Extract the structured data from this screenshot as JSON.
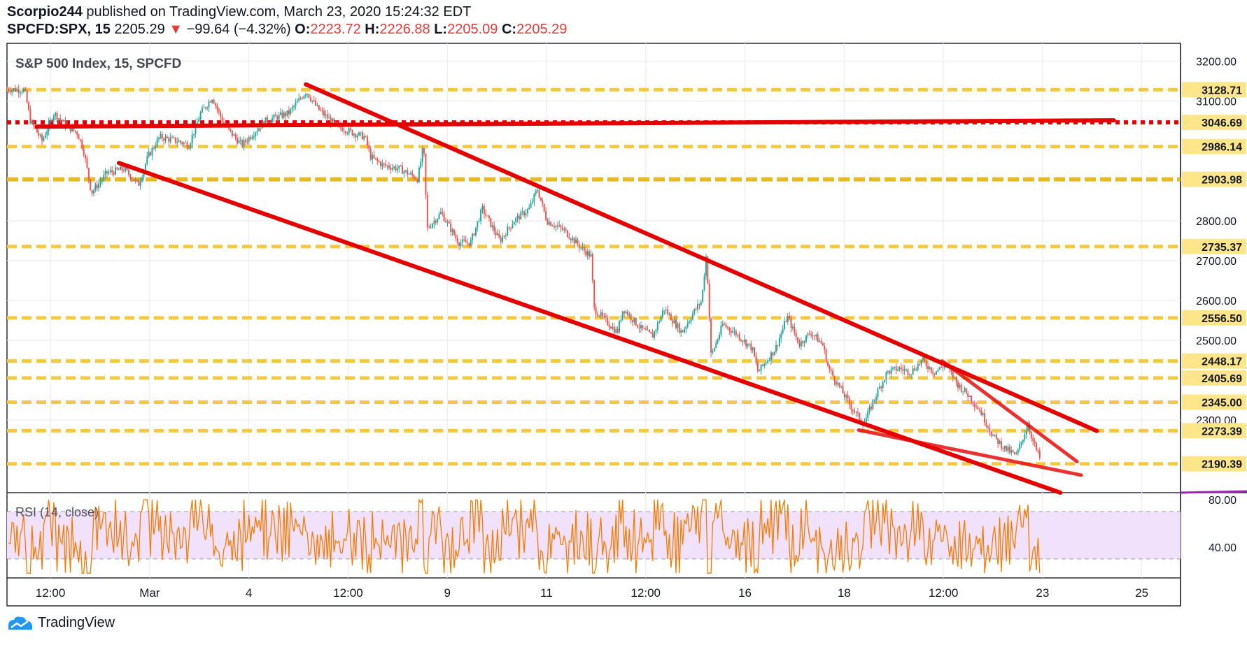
{
  "header": {
    "author": "Scorpio244",
    "published": "published on TradingView.com, March 23, 2020 15:24:32 EDT",
    "symbol": "SPCFD:SPX, 15",
    "last": "2205.29",
    "arrow": "▼",
    "change": "−99.64 (−4.32%)",
    "o_label": "O:",
    "o_value": "2223.72",
    "h_label": "H:",
    "h_value": "2226.88",
    "l_label": "L:",
    "l_value": "2205.09",
    "c_label": "C:",
    "c_value": "2205.29"
  },
  "footer": {
    "brand": "TradingView"
  },
  "colors": {
    "up": "#26a69a",
    "down": "#ef5350",
    "trend": "#e50000",
    "support": "#f5c842",
    "support_strong": "#e8b923",
    "rsi_line": "#f57c00",
    "rsi_band": "#f2e1fa",
    "grid": "#e6e9ee",
    "axis_text": "#131722",
    "price_label_bg": "#fde68a"
  },
  "chart_data": [
    {
      "type": "candlestick",
      "title": "S&P 500 Index, 15, SPCFD",
      "ylim": [
        2118,
        3245
      ],
      "y_ticks": [
        3200,
        3100,
        2800,
        2700,
        2600,
        2500,
        2300
      ],
      "y_tick_labels": [
        "3200.00",
        "3100.00",
        "2800.00",
        "2700.00",
        "2600.00",
        "2500.00",
        "2300.00"
      ],
      "x_tick_labels": [
        "12:00",
        "Mar",
        "4",
        "12:00",
        "9",
        "11",
        "12:00",
        "16",
        "18",
        "12:00",
        "23",
        "25"
      ],
      "horizontal_levels": [
        {
          "value": 3128.71,
          "label": "3128.71",
          "style": "dashed"
        },
        {
          "value": 3046.69,
          "label": "3046.69",
          "style": "red-dotted"
        },
        {
          "value": 2986.14,
          "label": "2986.14",
          "style": "dashed"
        },
        {
          "value": 2903.98,
          "label": "2903.98",
          "style": "dashed-strong"
        },
        {
          "value": 2735.37,
          "label": "2735.37",
          "style": "dashed"
        },
        {
          "value": 2556.5,
          "label": "2556.50",
          "style": "dashed"
        },
        {
          "value": 2448.17,
          "label": "2448.17",
          "style": "dashed"
        },
        {
          "value": 2405.69,
          "label": "2405.69",
          "style": "dashed"
        },
        {
          "value": 2345.0,
          "label": "2345.00",
          "style": "dashed"
        },
        {
          "value": 2273.39,
          "label": "2273.39",
          "style": "dashed"
        },
        {
          "value": 2190.39,
          "label": "2190.39",
          "style": "dashed"
        }
      ],
      "trendlines": [
        {
          "name": "resistance",
          "points": [
            [
              0.0253,
              3036
            ],
            [
              0.9432,
              3052
            ]
          ]
        },
        {
          "name": "channel-top",
          "points": [
            [
              0.2547,
              3142
            ],
            [
              0.9286,
              2273
            ]
          ]
        },
        {
          "name": "channel-bottom",
          "points": [
            [
              0.0954,
              2945
            ],
            [
              0.8976,
              2118
            ]
          ]
        },
        {
          "name": "wedge-top",
          "points": [
            [
              0.7971,
              2448
            ],
            [
              0.9118,
              2196
            ]
          ]
        },
        {
          "name": "wedge-bottom",
          "points": [
            [
              0.7257,
              2275
            ],
            [
              0.9154,
              2162
            ]
          ]
        }
      ],
      "path": [
        [
          0.0,
          3130
        ],
        [
          0.015,
          3128
        ],
        [
          0.02,
          3050
        ],
        [
          0.03,
          3000
        ],
        [
          0.04,
          3070
        ],
        [
          0.05,
          3040
        ],
        [
          0.06,
          3020
        ],
        [
          0.065,
          2980
        ],
        [
          0.072,
          2870
        ],
        [
          0.085,
          2920
        ],
        [
          0.1,
          2930
        ],
        [
          0.112,
          2890
        ],
        [
          0.12,
          2960
        ],
        [
          0.13,
          3010
        ],
        [
          0.145,
          3000
        ],
        [
          0.155,
          2990
        ],
        [
          0.165,
          3070
        ],
        [
          0.175,
          3110
        ],
        [
          0.185,
          3040
        ],
        [
          0.2,
          2990
        ],
        [
          0.21,
          3020
        ],
        [
          0.22,
          3050
        ],
        [
          0.24,
          3070
        ],
        [
          0.255,
          3125
        ],
        [
          0.265,
          3080
        ],
        [
          0.28,
          3040
        ],
        [
          0.295,
          3020
        ],
        [
          0.305,
          3010
        ],
        [
          0.31,
          2960
        ],
        [
          0.32,
          2940
        ],
        [
          0.335,
          2930
        ],
        [
          0.35,
          2905
        ],
        [
          0.355,
          2990
        ],
        [
          0.358,
          2780
        ],
        [
          0.37,
          2820
        ],
        [
          0.385,
          2745
        ],
        [
          0.395,
          2745
        ],
        [
          0.405,
          2830
        ],
        [
          0.42,
          2750
        ],
        [
          0.432,
          2800
        ],
        [
          0.445,
          2830
        ],
        [
          0.452,
          2880
        ],
        [
          0.46,
          2800
        ],
        [
          0.475,
          2775
        ],
        [
          0.49,
          2730
        ],
        [
          0.498,
          2710
        ],
        [
          0.5,
          2580
        ],
        [
          0.52,
          2520
        ],
        [
          0.525,
          2580
        ],
        [
          0.54,
          2530
        ],
        [
          0.55,
          2510
        ],
        [
          0.56,
          2580
        ],
        [
          0.575,
          2520
        ],
        [
          0.585,
          2570
        ],
        [
          0.592,
          2600
        ],
        [
          0.596,
          2720
        ],
        [
          0.6,
          2460
        ],
        [
          0.61,
          2540
        ],
        [
          0.62,
          2520
        ],
        [
          0.635,
          2480
        ],
        [
          0.64,
          2420
        ],
        [
          0.655,
          2480
        ],
        [
          0.665,
          2560
        ],
        [
          0.675,
          2490
        ],
        [
          0.685,
          2520
        ],
        [
          0.695,
          2490
        ],
        [
          0.7,
          2430
        ],
        [
          0.71,
          2380
        ],
        [
          0.72,
          2330
        ],
        [
          0.73,
          2290
        ],
        [
          0.74,
          2360
        ],
        [
          0.75,
          2420
        ],
        [
          0.76,
          2430
        ],
        [
          0.77,
          2420
        ],
        [
          0.78,
          2450
        ],
        [
          0.79,
          2420
        ],
        [
          0.8,
          2440
        ],
        [
          0.81,
          2390
        ],
        [
          0.82,
          2360
        ],
        [
          0.83,
          2320
        ],
        [
          0.84,
          2260
        ],
        [
          0.85,
          2230
        ],
        [
          0.86,
          2210
        ],
        [
          0.87,
          2290
        ],
        [
          0.875,
          2240
        ],
        [
          0.88,
          2205
        ]
      ],
      "rsi": {
        "label": "RSI (14, close)",
        "levels": [
          70,
          30
        ],
        "y_ticks": [
          80,
          40
        ],
        "y_tick_labels": [
          "80.00",
          "40.00"
        ],
        "ylim": [
          14,
          86
        ]
      }
    }
  ]
}
